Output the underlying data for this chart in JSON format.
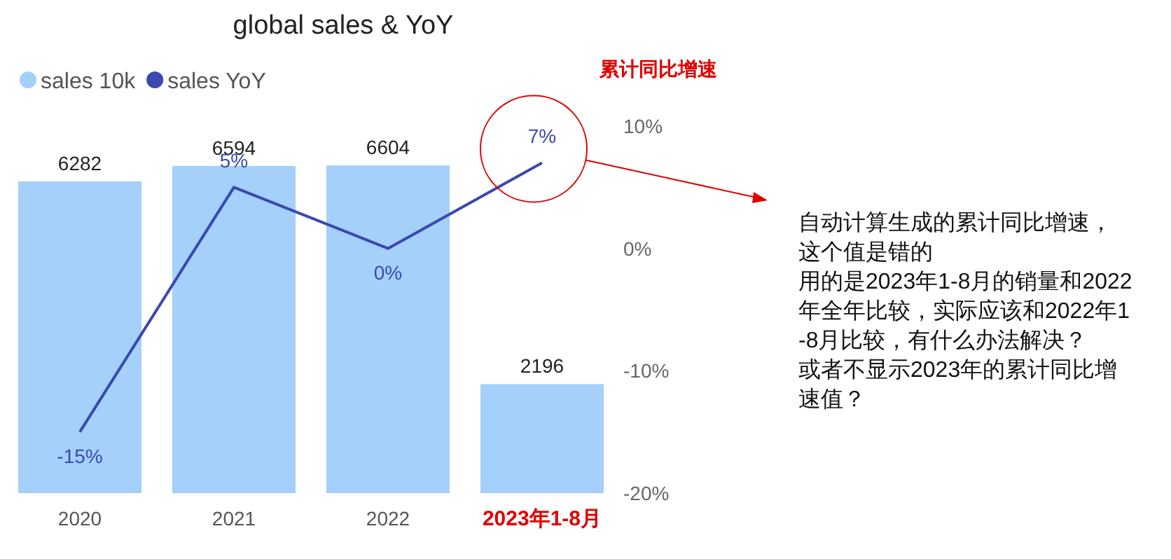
{
  "chart_data": {
    "type": "bar",
    "title": "global sales & YoY",
    "categories": [
      "2020",
      "2021",
      "2022",
      "2023年1-8月"
    ],
    "series": [
      {
        "name": "sales 10k",
        "color": "#a4d0fa",
        "values": [
          6282,
          6594,
          6604,
          2196
        ],
        "value_labels": [
          "6282",
          "6594",
          "6604",
          "2196"
        ]
      },
      {
        "name": "sales YoY",
        "type": "line",
        "axis": "y2",
        "color": "#3a48b0",
        "values": [
          -15,
          5,
          0,
          7
        ],
        "value_labels": [
          "-15%",
          "5%",
          "0%",
          "7%"
        ]
      }
    ],
    "y2lim": [
      -20,
      10
    ],
    "y2ticks": [
      {
        "value": -20,
        "label": "-20%"
      },
      {
        "value": -10,
        "label": "-10%"
      },
      {
        "value": 0,
        "label": "0%"
      },
      {
        "value": 10,
        "label": "10%"
      }
    ],
    "legend": "top left",
    "grid": false,
    "annotations": [
      "累计同比增速",
      "自动计算生成的累计同比增速，",
      "这个值是错的",
      "用的是2023年1-8月的销量和2022年全年比较，实际应该和2022年1-8月比较，有什么办法解决？",
      "或者不显示2023年的累计同比增速值？"
    ]
  }
}
